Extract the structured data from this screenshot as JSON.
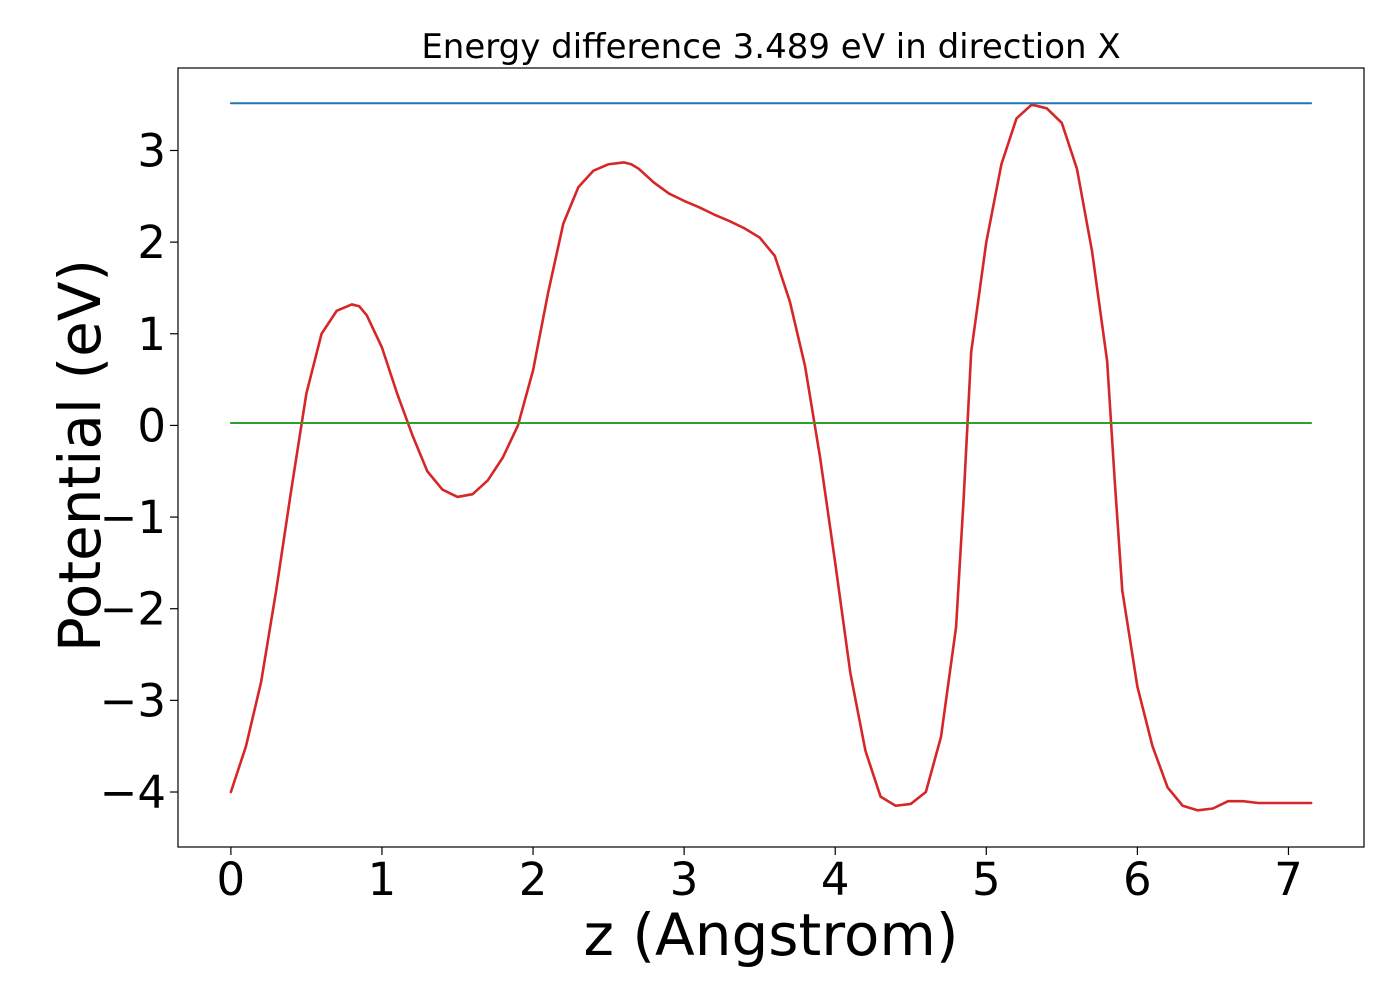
{
  "chart_data": {
    "type": "line",
    "title": "Energy difference 3.489 eV in direction X",
    "xlabel": "z (Angstrom)",
    "ylabel": "Potential (eV)",
    "xlim": [
      -0.35,
      7.5
    ],
    "ylim": [
      -4.6,
      3.9
    ],
    "xticks": [
      0,
      1,
      2,
      3,
      4,
      5,
      6,
      7
    ],
    "xtick_labels": [
      "0",
      "1",
      "2",
      "3",
      "4",
      "5",
      "6",
      "7"
    ],
    "yticks": [
      -4,
      -3,
      -2,
      -1,
      0,
      1,
      2,
      3
    ],
    "ytick_labels": [
      "−4",
      "−3",
      "−2",
      "−1",
      "0",
      "1",
      "2",
      "3"
    ],
    "grid": false,
    "series": [
      {
        "color": "#d62728",
        "x": [
          0,
          0.1,
          0.2,
          0.3,
          0.4,
          0.5,
          0.6,
          0.7,
          0.8,
          0.85,
          0.9,
          1.0,
          1.1,
          1.2,
          1.3,
          1.4,
          1.5,
          1.6,
          1.7,
          1.8,
          1.9,
          2.0,
          2.1,
          2.2,
          2.3,
          2.4,
          2.5,
          2.6,
          2.65,
          2.7,
          2.8,
          2.9,
          3.0,
          3.1,
          3.2,
          3.3,
          3.4,
          3.5,
          3.6,
          3.7,
          3.8,
          3.9,
          4.0,
          4.1,
          4.2,
          4.3,
          4.4,
          4.5,
          4.6,
          4.7,
          4.8,
          4.85,
          4.9,
          5.0,
          5.1,
          5.2,
          5.3,
          5.4,
          5.5,
          5.6,
          5.7,
          5.8,
          5.85,
          5.9,
          6.0,
          6.1,
          6.2,
          6.3,
          6.4,
          6.5,
          6.6,
          6.7,
          6.8,
          6.9,
          7.0,
          7.05,
          7.1,
          7.15
        ],
        "y": [
          -4.0,
          -3.5,
          -2.8,
          -1.8,
          -0.7,
          0.35,
          1.0,
          1.25,
          1.32,
          1.3,
          1.2,
          0.85,
          0.35,
          -0.1,
          -0.5,
          -0.7,
          -0.78,
          -0.75,
          -0.6,
          -0.35,
          0.0,
          0.6,
          1.45,
          2.2,
          2.6,
          2.78,
          2.85,
          2.87,
          2.85,
          2.8,
          2.65,
          2.53,
          2.45,
          2.38,
          2.3,
          2.23,
          2.15,
          2.05,
          1.85,
          1.35,
          0.65,
          -0.35,
          -1.5,
          -2.7,
          -3.55,
          -4.05,
          -4.15,
          -4.13,
          -4.0,
          -3.4,
          -2.2,
          -0.8,
          0.8,
          2.0,
          2.85,
          3.35,
          3.5,
          3.46,
          3.3,
          2.8,
          1.9,
          0.7,
          -0.6,
          -1.8,
          -2.85,
          -3.5,
          -3.95,
          -4.15,
          -4.2,
          -4.18,
          -4.1,
          -4.1,
          -4.12,
          -4.12,
          -4.12,
          -4.12,
          -4.12,
          -4.12
        ]
      },
      {
        "color": "#1f77b4",
        "x": [
          0,
          7.15
        ],
        "y": [
          3.515,
          3.515
        ]
      },
      {
        "color": "#2ca02c",
        "x": [
          0,
          7.15
        ],
        "y": [
          0.026,
          0.026
        ]
      }
    ]
  }
}
